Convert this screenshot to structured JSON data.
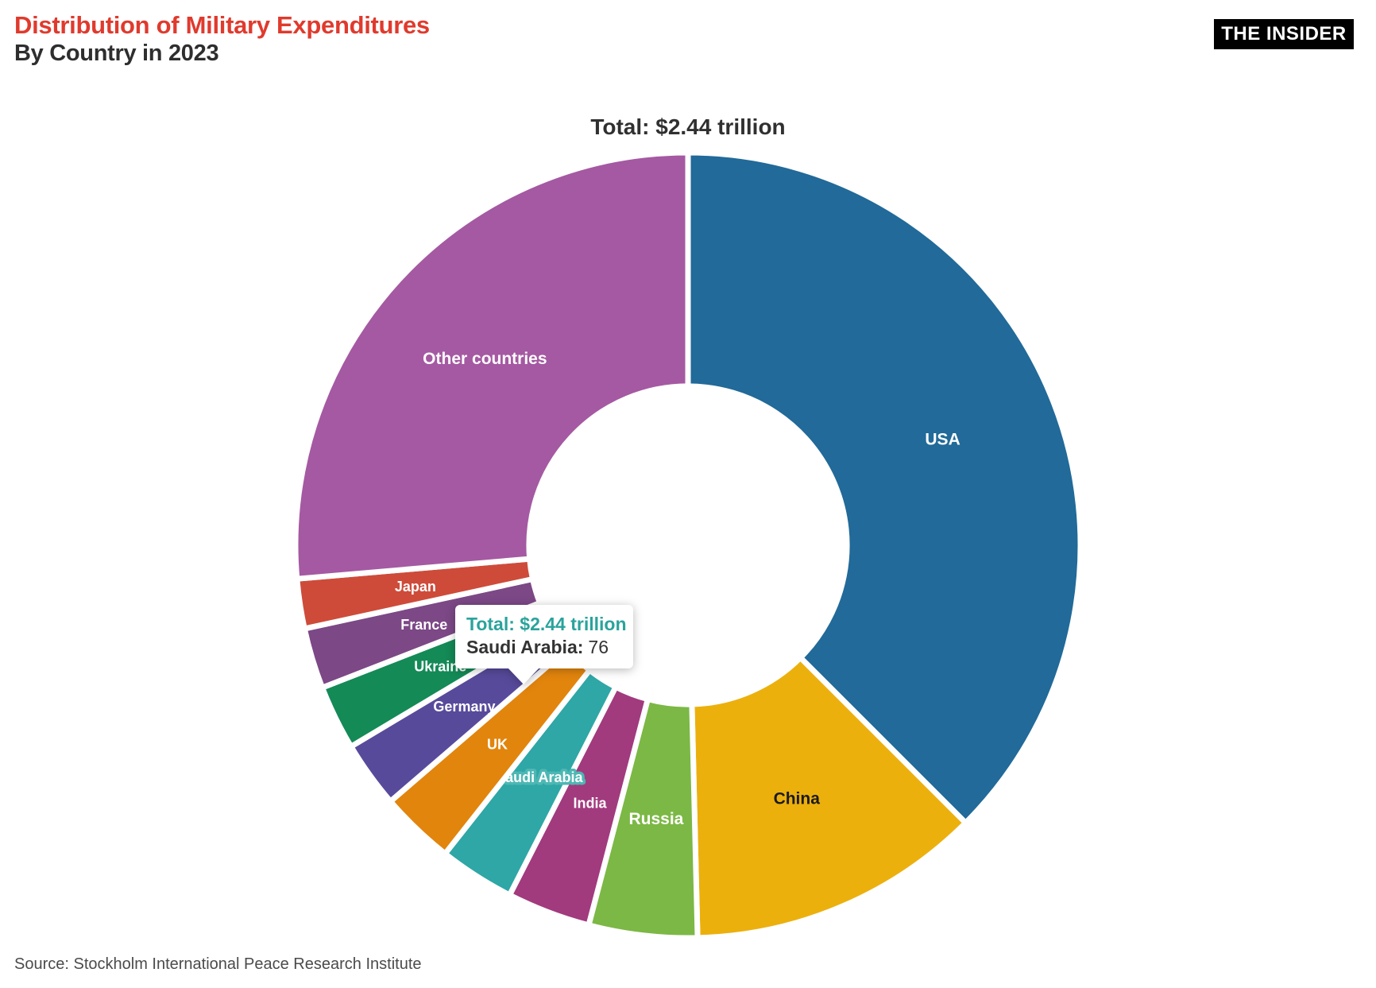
{
  "header": {
    "title": "Distribution of Military Expenditures",
    "subtitle": "By Country in 2023",
    "title_color": "#e03a2d",
    "brand": "THE INSIDER"
  },
  "tooltip": {
    "total_line": "Total: $2.44 trillion",
    "series_label": "Saudi Arabia:",
    "series_value": "76",
    "accent_color": "#2aa39c"
  },
  "source": {
    "text": "Source: Stockholm International Peace Research Institute"
  },
  "chart_data": {
    "type": "pie",
    "title": "Total: $2.44 trillion",
    "subtype": "donut",
    "units": "US$ billions",
    "total": 2443,
    "start_angle_deg": 0,
    "direction": "clockwise",
    "inner_radius_ratio": 0.405,
    "legend_position": "none",
    "segments": [
      {
        "label": "USA",
        "value": 916,
        "color": "#216a99",
        "label_color": "#ffffff"
      },
      {
        "label": "China",
        "value": 296,
        "color": "#ecb00d",
        "label_color": "#1a1a1a"
      },
      {
        "label": "Russia",
        "value": 109,
        "color": "#7cb845",
        "label_color": "#ffffff"
      },
      {
        "label": "India",
        "value": 84,
        "color": "#a23a7e",
        "label_color": "#ffffff"
      },
      {
        "label": "Saudi Arabia",
        "value": 76,
        "color": "#2ea7a6",
        "label_color": "#ffffff",
        "highlighted": true,
        "highlight_color": "#4db7b3"
      },
      {
        "label": "UK",
        "value": 75,
        "color": "#e2850d",
        "label_color": "#ffffff"
      },
      {
        "label": "Germany",
        "value": 67,
        "color": "#584a9b",
        "label_color": "#ffffff"
      },
      {
        "label": "Ukraine",
        "value": 65,
        "color": "#148a57",
        "label_color": "#ffffff"
      },
      {
        "label": "France",
        "value": 61,
        "color": "#7c4886",
        "label_color": "#ffffff"
      },
      {
        "label": "Japan",
        "value": 50,
        "color": "#ce4b3a",
        "label_color": "#ffffff"
      },
      {
        "label": "Other countries",
        "value": 644,
        "color": "#a559a2",
        "label_color": "#ffffff"
      }
    ]
  }
}
